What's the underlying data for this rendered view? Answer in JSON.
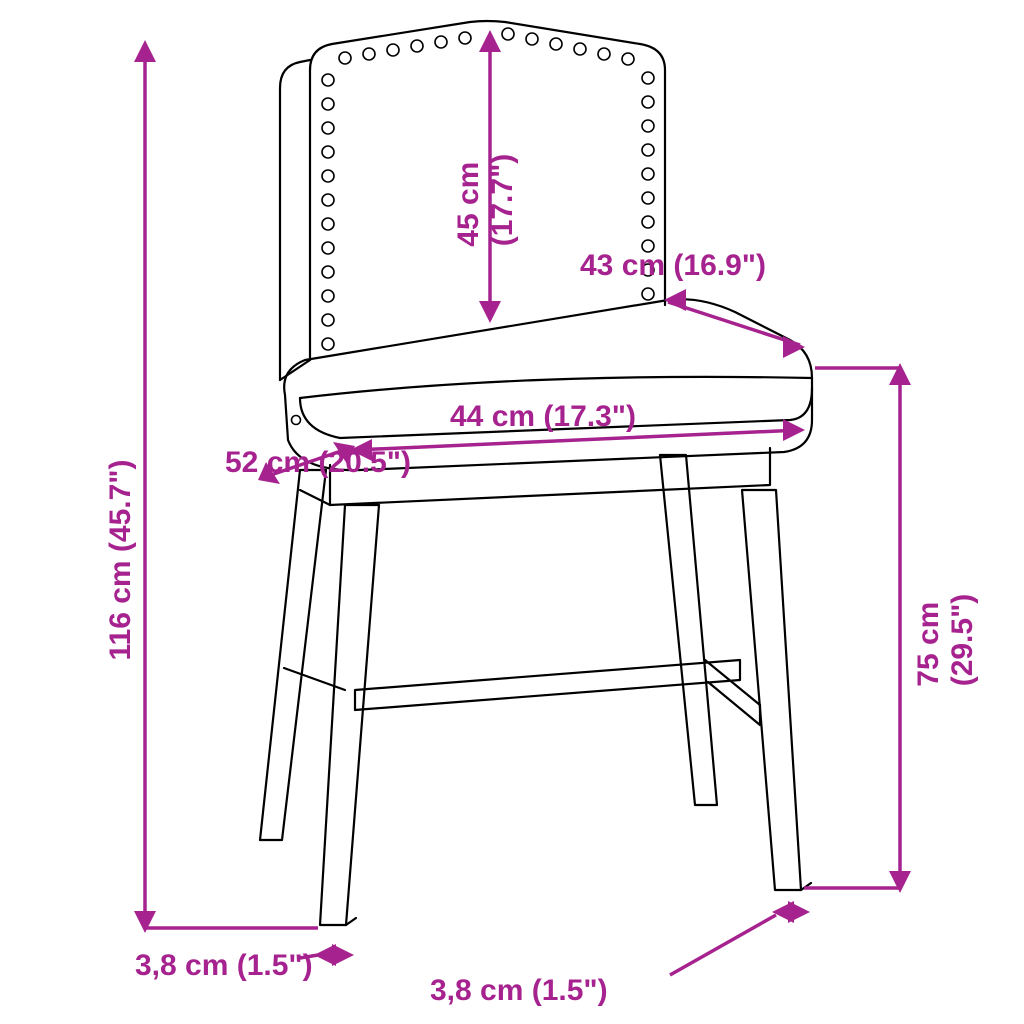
{
  "type": "dimension-diagram",
  "colors": {
    "accent": "#a6238f",
    "line": "#000000",
    "background": "#ffffff"
  },
  "font": {
    "family": "Arial",
    "size_pt": 30,
    "weight": "bold"
  },
  "dimensions": {
    "total_height": {
      "cm": "116 cm",
      "in": "(45.7\")"
    },
    "seat_height": {
      "cm": "75 cm",
      "in": "(29.5\")"
    },
    "back_height": {
      "cm": "45 cm",
      "in": "(17.7\")"
    },
    "seat_width": {
      "cm": "44 cm",
      "in": "(17.3\")"
    },
    "seat_top_width": {
      "cm": "43 cm",
      "in": "(16.9\")"
    },
    "seat_depth": {
      "cm": "52 cm",
      "in": "(20.5\")"
    },
    "leg_left": {
      "cm": "3,8 cm",
      "in": "(1.5\")"
    },
    "leg_right": {
      "cm": "3,8 cm",
      "in": "(1.5\")"
    }
  },
  "stud_radius": 6
}
